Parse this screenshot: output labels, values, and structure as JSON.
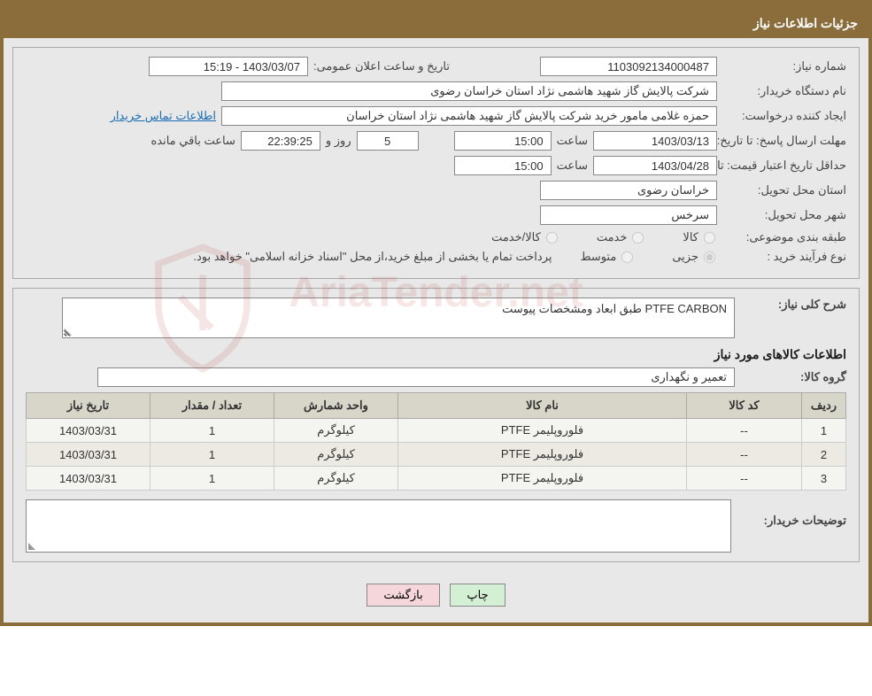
{
  "header": {
    "title": "جزئیات اطلاعات نیاز"
  },
  "labels": {
    "need_no": "شماره نیاز:",
    "announce_datetime": "تاریخ و ساعت اعلان عمومی:",
    "buyer_org": "نام دستگاه خریدار:",
    "requester": "ایجاد کننده درخواست:",
    "contact_link": "اطلاعات تماس خریدار",
    "reply_deadline": "مهلت ارسال پاسخ:",
    "to_date": "تا تاریخ:",
    "hour": "ساعت",
    "days_and": "روز و",
    "time_remaining": "ساعت باقي مانده",
    "min_validity": "حداقل تاریخ اعتبار قیمت:",
    "province": "استان محل تحویل:",
    "city": "شهر محل تحویل:",
    "category": "طبقه بندی موضوعی:",
    "cat_goods": "کالا",
    "cat_service": "خدمت",
    "cat_goods_service": "کالا/خدمت",
    "process_type": "نوع فرآیند خرید :",
    "proc_minor": "جزیی",
    "proc_medium": "متوسط",
    "payment_note": "پرداخت تمام یا بخشی از مبلغ خرید،از محل \"اسناد خزانه اسلامی\" خواهد بود.",
    "need_desc": "شرح کلی نیاز:",
    "goods_info_heading": "اطلاعات کالاهای مورد نیاز",
    "goods_group": "گروه کالا:",
    "buyer_notes": "توضیحات خریدار:"
  },
  "fields": {
    "need_no": "1103092134000487",
    "announce_datetime": "1403/03/07 - 15:19",
    "buyer_org": "شرکت پالایش گاز شهید هاشمی نژاد   استان خراسان رضوی",
    "requester": "حمزه غلامی مامور خرید شرکت پالایش گاز شهید هاشمی نژاد   استان خراسان",
    "reply_date": "1403/03/13",
    "reply_time": "15:00",
    "remaining_days": "5",
    "remaining_clock": "22:39:25",
    "validity_date": "1403/04/28",
    "validity_time": "15:00",
    "province": "خراسان رضوی",
    "city": "سرخس",
    "need_desc": "PTFE CARBON طبق ابعاد ومشخصات پیوست",
    "goods_group": "تعمیر و نگهداری"
  },
  "table": {
    "columns": [
      "ردیف",
      "کد کالا",
      "نام کالا",
      "واحد شمارش",
      "تعداد / مقدار",
      "تاریخ نیاز"
    ],
    "col_widths": [
      "50px",
      "130px",
      "auto",
      "140px",
      "140px",
      "140px"
    ],
    "rows": [
      [
        "1",
        "--",
        "فلوروپلیمر PTFE",
        "کیلوگرم",
        "1",
        "1403/03/31"
      ],
      [
        "2",
        "--",
        "فلوروپلیمر PTFE",
        "کیلوگرم",
        "1",
        "1403/03/31"
      ],
      [
        "3",
        "--",
        "فلوروپلیمر PTFE",
        "کیلوگرم",
        "1",
        "1403/03/31"
      ]
    ]
  },
  "buttons": {
    "print": "چاپ",
    "back": "بازگشت"
  },
  "watermark": {
    "text": "AriaTender.net",
    "shield_color": "#b03030"
  },
  "colors": {
    "frame": "#8a6d3b",
    "panel_bg": "#e8e8e8",
    "field_border": "#888888",
    "th_bg": "#d8d5c9",
    "td_bg_odd": "#f4f4f0",
    "td_bg_even": "#eceae2",
    "link": "#1a6db5",
    "btn_print": "#d4f0d4",
    "btn_back": "#f5d6db"
  }
}
